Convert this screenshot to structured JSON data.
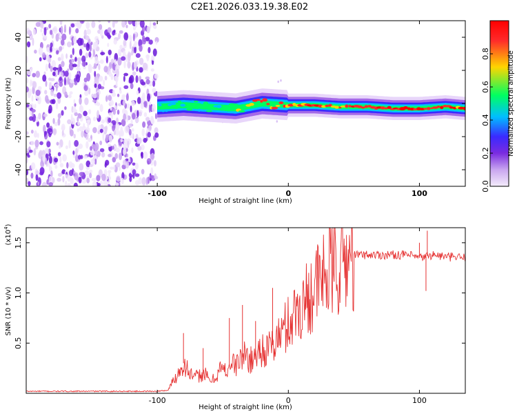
{
  "title": "C2E1.2026.033.19.38.E02",
  "colors": {
    "snr_line": "#e53030",
    "noise_purple": "#7a2be0",
    "colormap": [
      "#f4ecfb",
      "#c9a6f0",
      "#7a2be0",
      "#3a2aff",
      "#00bfff",
      "#00ff60",
      "#ffd500",
      "#ff2a2a",
      "#ff0000"
    ]
  },
  "chart_data": [
    {
      "type": "heatmap",
      "name": "spectrogram",
      "title": "C2E1.2026.033.19.38.E02",
      "xlabel": "Height of straight line (km)",
      "ylabel": "Frequency (Hz)",
      "xlim": [
        -200,
        135
      ],
      "ylim": [
        -50,
        50
      ],
      "x_ticks": [
        -100,
        0,
        100
      ],
      "x_tick_labels": [
        "-100",
        "0",
        "100"
      ],
      "y_ticks": [
        -40,
        -20,
        0,
        20,
        40
      ],
      "y_tick_labels": [
        "-40",
        "-20",
        "0",
        "20",
        "40"
      ],
      "noise_region_x": [
        -200,
        -100
      ],
      "signal_track": {
        "x": [
          -100,
          -80,
          -60,
          -40,
          -20,
          0,
          20,
          40,
          60,
          80,
          100,
          120,
          135
        ],
        "frequency": [
          -2,
          -1,
          -2,
          -3,
          0,
          -1,
          -1,
          -2,
          -2,
          -3,
          -3,
          -2,
          -3
        ],
        "amplitude": [
          0.35,
          0.45,
          0.45,
          0.55,
          0.8,
          0.85,
          0.85,
          0.9,
          0.9,
          0.95,
          0.95,
          0.9,
          0.9
        ]
      },
      "colorbar": {
        "label": "Normalized spectral amplitude",
        "range": [
          0,
          1
        ],
        "ticks": [
          0.0,
          0.2,
          0.4,
          0.6,
          0.8
        ],
        "tick_labels": [
          "0.0",
          "0.2",
          "0.4",
          "0.6",
          "0.8"
        ]
      }
    },
    {
      "type": "line",
      "name": "snr",
      "xlabel": "Height of straight line (km)",
      "ylabel": "SNR (10 * v/v)",
      "y_scale_note": "(x10",
      "y_scale_exponent": "4",
      "xlim": [
        -200,
        135
      ],
      "ylim": [
        0,
        1.65
      ],
      "x_ticks": [
        -100,
        0,
        100
      ],
      "x_tick_labels": [
        "-100",
        "0",
        "100"
      ],
      "y_ticks": [
        0.5,
        1.0,
        1.5
      ],
      "y_tick_labels": [
        "0.5",
        "1.0",
        "1.5"
      ],
      "series": [
        {
          "name": "SNR",
          "x": [
            -200,
            -150,
            -100,
            -92,
            -88,
            -84,
            -80,
            -76,
            -72,
            -68,
            -64,
            -60,
            -56,
            -52,
            -48,
            -44,
            -40,
            -36,
            -32,
            -28,
            -24,
            -20,
            -16,
            -12,
            -8,
            -4,
            0,
            4,
            8,
            12,
            16,
            20,
            24,
            28,
            32,
            36,
            40,
            44,
            48,
            52,
            56,
            60,
            70,
            80,
            90,
            100,
            110,
            120,
            135
          ],
          "y": [
            0.02,
            0.02,
            0.02,
            0.03,
            0.12,
            0.2,
            0.3,
            0.22,
            0.15,
            0.18,
            0.2,
            0.12,
            0.15,
            0.25,
            0.22,
            0.3,
            0.28,
            0.35,
            0.38,
            0.32,
            0.4,
            0.45,
            0.42,
            0.48,
            0.55,
            0.62,
            0.7,
            0.78,
            0.85,
            0.9,
            1.0,
            1.05,
            1.1,
            1.18,
            1.22,
            1.25,
            1.3,
            1.33,
            1.36,
            1.38,
            1.38,
            1.38,
            1.38,
            1.38,
            1.38,
            1.35,
            1.38,
            1.36,
            1.35
          ]
        }
      ],
      "spikes": [
        {
          "x": -80,
          "y": 0.6
        },
        {
          "x": -65,
          "y": 0.45
        },
        {
          "x": -45,
          "y": 0.75
        },
        {
          "x": -35,
          "y": 0.88
        },
        {
          "x": -25,
          "y": 0.72
        },
        {
          "x": -12,
          "y": 1.05
        },
        {
          "x": 100,
          "y": 1.5
        },
        {
          "x": 106,
          "y": 1.62
        },
        {
          "x": 105,
          "y": 1.02
        }
      ]
    }
  ]
}
